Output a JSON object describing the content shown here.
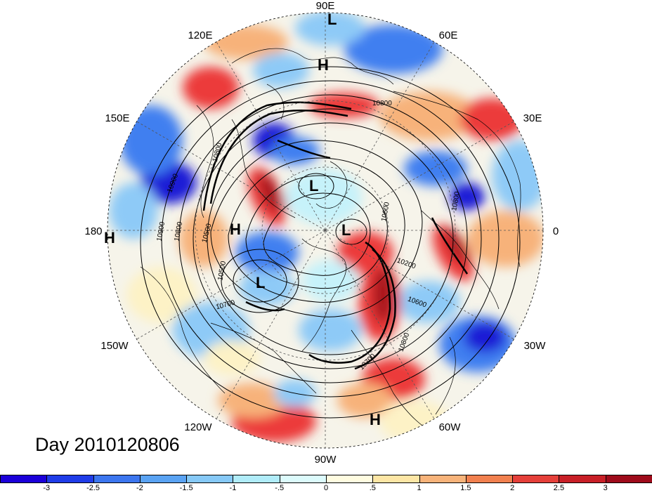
{
  "map": {
    "title": "Day 2010120806",
    "projection": "polar-stereographic-north",
    "longitude_labels": [
      {
        "text": "90E",
        "lon_deg": 90
      },
      {
        "text": "60E",
        "lon_deg": 60
      },
      {
        "text": "30E",
        "lon_deg": 30
      },
      {
        "text": "0",
        "lon_deg": 0
      },
      {
        "text": "30W",
        "lon_deg": -30
      },
      {
        "text": "60W",
        "lon_deg": -60
      },
      {
        "text": "90W",
        "lon_deg": -90
      },
      {
        "text": "120W",
        "lon_deg": -120
      },
      {
        "text": "150W",
        "lon_deg": -150
      },
      {
        "text": "180",
        "lon_deg": 180
      },
      {
        "text": "150E",
        "lon_deg": 150
      },
      {
        "text": "120E",
        "lon_deg": 120
      }
    ],
    "pressure_systems": [
      {
        "type": "L",
        "note": "top near 90E"
      },
      {
        "type": "H",
        "note": "upper center"
      },
      {
        "type": "L",
        "note": "center north"
      },
      {
        "type": "H",
        "note": "left of pole"
      },
      {
        "type": "L",
        "note": "right of pole"
      },
      {
        "type": "L",
        "note": "lower left"
      },
      {
        "type": "H",
        "note": "bottom near 60W"
      },
      {
        "type": "H",
        "note": "far left edge"
      }
    ],
    "contour_labels": [
      "10800",
      "10900",
      "10800",
      "10800",
      "10500",
      "10900",
      "10600",
      "10700",
      "10500",
      "10200",
      "10800",
      "10600",
      "10800",
      "10700"
    ],
    "colors": {
      "blue_dark": "#1a1ad6",
      "blue_mid": "#3f7ff0",
      "blue_light": "#8ecaf7",
      "cyan_light": "#c6f2fa",
      "white": "#ffffff",
      "cream": "#fdf2c6",
      "orange_light": "#f7b27a",
      "red": "#ec3b3b",
      "red_dark": "#a8141e"
    }
  },
  "colorbar": {
    "tick_labels": [
      "-3",
      "-2.5",
      "-2",
      "-1.5",
      "-1",
      "-.5",
      "0",
      ".5",
      "1",
      "1.5",
      "2",
      "2.5",
      "3"
    ],
    "colors": [
      "#1b00d9",
      "#1f3ce8",
      "#3c76ef",
      "#5aa3f3",
      "#86c9f7",
      "#b0ecf9",
      "#dcfbfc",
      "#fffce0",
      "#fde6a5",
      "#f7b37a",
      "#f1804f",
      "#e5403a",
      "#c81f27",
      "#9e0b1b"
    ]
  }
}
